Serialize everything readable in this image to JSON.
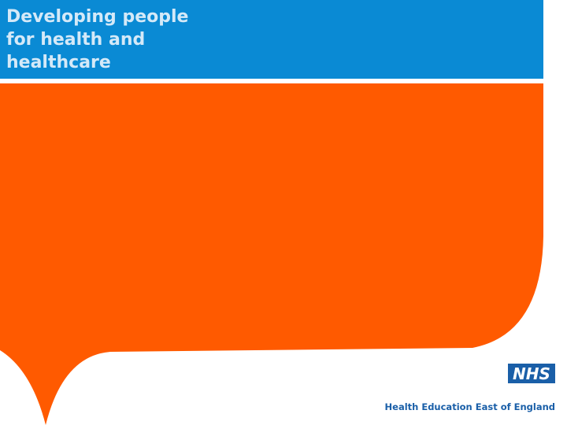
{
  "header": {
    "title_lines": [
      "Developing people",
      "for health and",
      "healthcare"
    ]
  },
  "footer": {
    "logo": "NHS",
    "organisation": "Health Education East of England"
  }
}
